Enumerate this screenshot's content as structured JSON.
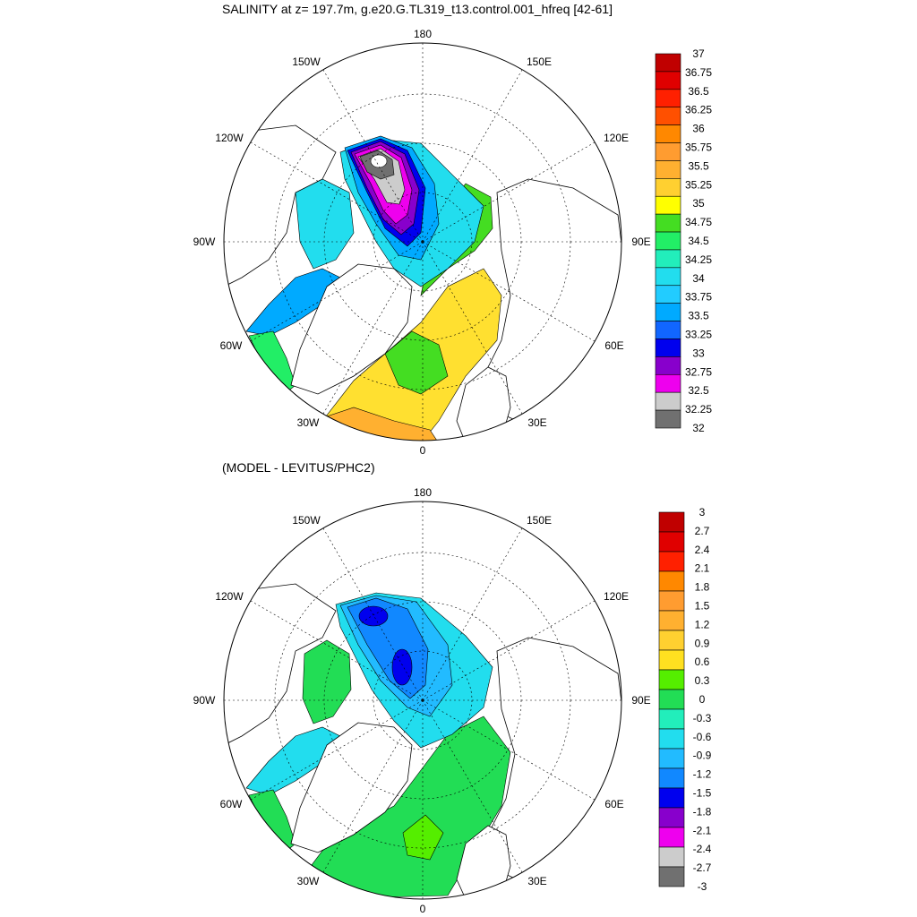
{
  "panels": [
    {
      "title": "SALINITY at z= 197.7m, g.e20.G.TL319_t13.control.001_hfreq [42-61]",
      "longitude_labels": [
        "180",
        "150E",
        "120E",
        "90E",
        "60E",
        "30E",
        "0",
        "30W",
        "60W",
        "90W",
        "120W",
        "150W"
      ],
      "colorbar": {
        "labels": [
          "37",
          "36.75",
          "36.5",
          "36.25",
          "36",
          "35.75",
          "35.5",
          "35.25",
          "35",
          "34.75",
          "34.5",
          "34.25",
          "34",
          "33.75",
          "33.5",
          "33.25",
          "33",
          "32.75",
          "32.5",
          "32.25",
          "32"
        ],
        "colors": [
          "#c00000",
          "#e00000",
          "#ff2000",
          "#ff5000",
          "#ff8800",
          "#ff9c30",
          "#ffb030",
          "#ffd030",
          "#ffff00",
          "#44dd22",
          "#22ee66",
          "#22eebb",
          "#22ddee",
          "#22ccff",
          "#00aaff",
          "#1166ff",
          "#0000ee",
          "#8800cc",
          "#ee00ee",
          "#cccccc",
          "#707070"
        ]
      }
    },
    {
      "title": "(MODEL - LEVITUS/PHC2)",
      "longitude_labels": [
        "180",
        "150E",
        "120E",
        "90E",
        "60E",
        "30E",
        "0",
        "30W",
        "60W",
        "90W",
        "120W",
        "150W"
      ],
      "colorbar": {
        "labels": [
          "3",
          "2.7",
          "2.4",
          "2.1",
          "1.8",
          "1.5",
          "1.2",
          "0.9",
          "0.6",
          "0.3",
          "0",
          "-0.3",
          "-0.6",
          "-0.9",
          "-1.2",
          "-1.5",
          "-1.8",
          "-2.1",
          "-2.4",
          "-2.7",
          "-3"
        ],
        "colors": [
          "#c00000",
          "#e00000",
          "#ff2000",
          "#ff8800",
          "#ff9c30",
          "#ffb030",
          "#ffd030",
          "#ffe020",
          "#55ee00",
          "#22dd55",
          "#22eebb",
          "#22ddee",
          "#22bbff",
          "#1188ff",
          "#0000ee",
          "#8800cc",
          "#ee00ee",
          "#cccccc",
          "#707070"
        ]
      }
    }
  ]
}
